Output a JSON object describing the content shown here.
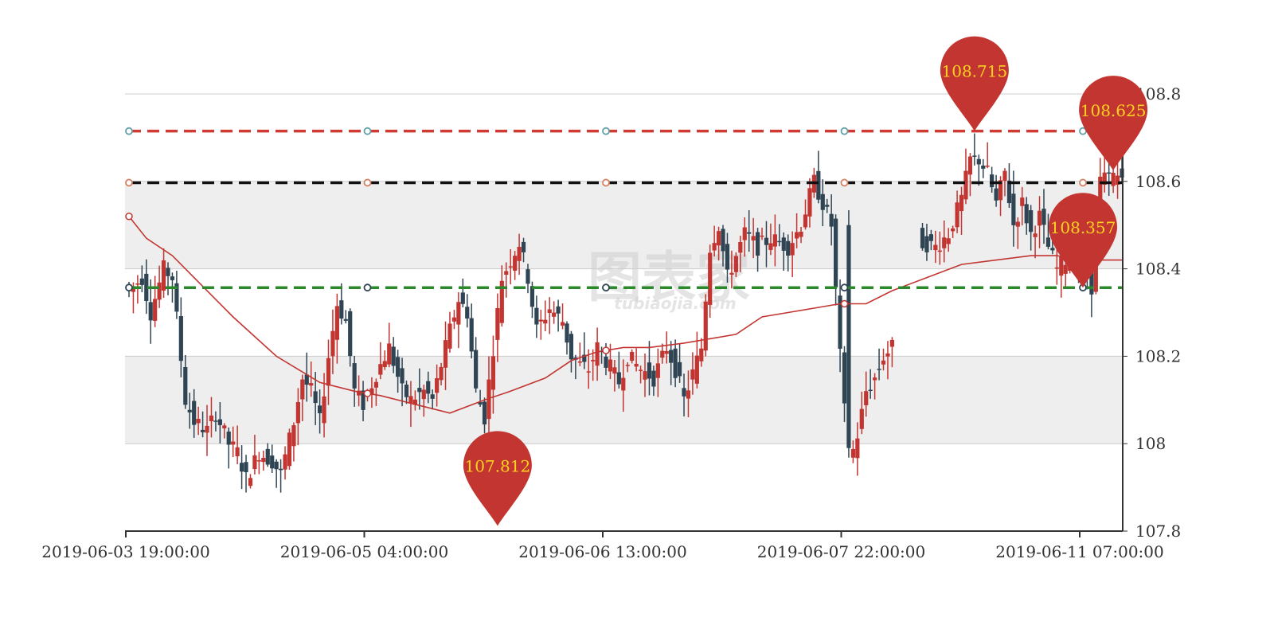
{
  "chart_data": {
    "type": "candlestick",
    "watermark": {
      "main": "图表家",
      "sub": "tubiaojia.com"
    },
    "y_axis": {
      "position": "right",
      "range": [
        107.8,
        108.8
      ],
      "ticks": [
        {
          "value": 107.8,
          "label": "107.8"
        },
        {
          "value": 108.0,
          "label": "108"
        },
        {
          "value": 108.2,
          "label": "108.2"
        },
        {
          "value": 108.4,
          "label": "108.4"
        },
        {
          "value": 108.6,
          "label": "108.6"
        },
        {
          "value": 108.8,
          "label": "108.8"
        }
      ],
      "shaded_bands": [
        [
          108.0,
          108.2
        ],
        [
          108.4,
          108.6
        ]
      ]
    },
    "x_axis": {
      "count": 230,
      "ticks": [
        {
          "index": 0,
          "label": "2019-06-03  19:00:00"
        },
        {
          "index": 55,
          "label": "2019-06-05  04:00:00"
        },
        {
          "index": 110,
          "label": "2019-06-06  13:00:00"
        },
        {
          "index": 165,
          "label": "2019-06-07  22:00:00"
        },
        {
          "index": 220,
          "label": "2019-06-11  07:00:00"
        }
      ]
    },
    "colors": {
      "up": "#c23531",
      "down": "#2f4554",
      "ma": "#c23531",
      "pin": "#c23531",
      "pin_text": "#ffd21f"
    },
    "reference_lines": [
      {
        "value": 108.715,
        "color": "#d13a33",
        "marker": "#61a0a8"
      },
      {
        "value": 108.597,
        "color": "#111111",
        "marker": "#d48265"
      },
      {
        "value": 108.357,
        "color": "#2a8a2a",
        "marker": "#2f4554"
      }
    ],
    "pins": [
      {
        "index": 85,
        "value": 107.812,
        "label": "107.812"
      },
      {
        "index": 195,
        "value": 108.715,
        "label": "108.715"
      },
      {
        "index": 227,
        "value": 108.625,
        "label": "108.625"
      },
      {
        "index": 220,
        "value": 108.357,
        "label": "108.357"
      }
    ],
    "ma_line": [
      [
        0,
        108.52
      ],
      [
        4,
        108.47
      ],
      [
        10,
        108.43
      ],
      [
        16,
        108.37
      ],
      [
        24,
        108.29
      ],
      [
        34,
        108.2
      ],
      [
        44,
        108.14
      ],
      [
        52,
        108.12
      ],
      [
        58,
        108.11
      ],
      [
        66,
        108.09
      ],
      [
        74,
        108.07
      ],
      [
        82,
        108.1
      ],
      [
        88,
        108.12
      ],
      [
        96,
        108.15
      ],
      [
        102,
        108.19
      ],
      [
        108,
        108.21
      ],
      [
        114,
        108.22
      ],
      [
        120,
        108.22
      ],
      [
        128,
        108.23
      ],
      [
        134,
        108.24
      ],
      [
        140,
        108.25
      ],
      [
        146,
        108.29
      ],
      [
        152,
        108.3
      ],
      [
        158,
        108.31
      ],
      [
        164,
        108.32
      ],
      [
        170,
        108.32
      ],
      [
        176,
        108.35
      ],
      [
        184,
        108.38
      ],
      [
        192,
        108.41
      ],
      [
        200,
        108.42
      ],
      [
        208,
        108.43
      ],
      [
        214,
        108.43
      ],
      [
        220,
        108.42
      ],
      [
        229,
        108.42
      ]
    ],
    "ohlc_anchors": [
      [
        0,
        108.35
      ],
      [
        3,
        108.38
      ],
      [
        5,
        108.3
      ],
      [
        8,
        108.4
      ],
      [
        10,
        108.38
      ],
      [
        13,
        108.1
      ],
      [
        15,
        108.05
      ],
      [
        18,
        108.03
      ],
      [
        20,
        108.07
      ],
      [
        23,
        108.0
      ],
      [
        25,
        107.98
      ],
      [
        27,
        107.92
      ],
      [
        30,
        107.98
      ],
      [
        33,
        107.96
      ],
      [
        35,
        107.93
      ],
      [
        38,
        108.05
      ],
      [
        40,
        108.15
      ],
      [
        42,
        108.12
      ],
      [
        44,
        108.05
      ],
      [
        46,
        108.2
      ],
      [
        48,
        108.32
      ],
      [
        50,
        108.28
      ],
      [
        52,
        108.12
      ],
      [
        54,
        108.09
      ],
      [
        57,
        108.16
      ],
      [
        60,
        108.22
      ],
      [
        63,
        108.12
      ],
      [
        65,
        108.1
      ],
      [
        68,
        108.12
      ],
      [
        70,
        108.1
      ],
      [
        72,
        108.18
      ],
      [
        74,
        108.26
      ],
      [
        76,
        108.33
      ],
      [
        78,
        108.3
      ],
      [
        80,
        108.12
      ],
      [
        82,
        108.06
      ],
      [
        84,
        108.22
      ],
      [
        86,
        108.38
      ],
      [
        88,
        108.42
      ],
      [
        90,
        108.46
      ],
      [
        92,
        108.38
      ],
      [
        94,
        108.26
      ],
      [
        97,
        108.31
      ],
      [
        100,
        108.28
      ],
      [
        102,
        108.2
      ],
      [
        104,
        108.18
      ],
      [
        106,
        108.17
      ],
      [
        108,
        108.22
      ],
      [
        110,
        108.19
      ],
      [
        113,
        108.14
      ],
      [
        115,
        108.2
      ],
      [
        118,
        108.17
      ],
      [
        121,
        108.15
      ],
      [
        124,
        108.22
      ],
      [
        126,
        108.17
      ],
      [
        128,
        108.1
      ],
      [
        130,
        108.16
      ],
      [
        132,
        108.22
      ],
      [
        134,
        108.45
      ],
      [
        136,
        108.5
      ],
      [
        138,
        108.38
      ],
      [
        140,
        108.43
      ],
      [
        142,
        108.48
      ],
      [
        145,
        108.45
      ],
      [
        148,
        108.47
      ],
      [
        152,
        108.45
      ],
      [
        155,
        108.5
      ],
      [
        158,
        108.6
      ],
      [
        160,
        108.55
      ],
      [
        162,
        108.5
      ],
      [
        164,
        108.2
      ],
      [
        166,
        107.95
      ],
      [
        168,
        108.02
      ],
      [
        170,
        108.12
      ],
      [
        172,
        108.15
      ],
      [
        174,
        108.2
      ],
      [
        176,
        108.22
      ],
      [
        177,
        108.2
      ],
      [
        178,
        null
      ],
      [
        182,
        null
      ],
      [
        183,
        108.46
      ],
      [
        186,
        108.45
      ],
      [
        189,
        108.48
      ],
      [
        192,
        108.56
      ],
      [
        194,
        108.65
      ],
      [
        196,
        108.65
      ],
      [
        198,
        108.62
      ],
      [
        200,
        108.55
      ],
      [
        202,
        108.62
      ],
      [
        204,
        108.5
      ],
      [
        206,
        108.55
      ],
      [
        208,
        108.48
      ],
      [
        210,
        108.52
      ],
      [
        212,
        108.45
      ],
      [
        214,
        108.4
      ],
      [
        217,
        108.43
      ],
      [
        220,
        108.42
      ],
      [
        222,
        108.36
      ],
      [
        224,
        108.6
      ],
      [
        226,
        108.61
      ],
      [
        229,
        108.61
      ]
    ]
  }
}
